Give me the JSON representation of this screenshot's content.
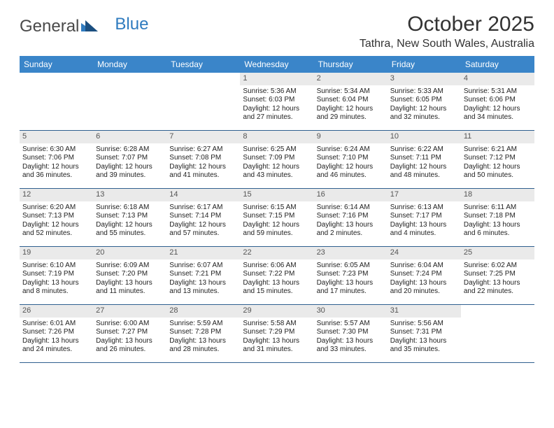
{
  "logo": {
    "text1": "General",
    "text2": "Blue"
  },
  "title": "October 2025",
  "subtitle": "Tathra, New South Wales, Australia",
  "colors": {
    "header_bg": "#3a85c9",
    "header_text": "#ffffff",
    "daynum_bg": "#eaeaea",
    "daynum_text": "#555555",
    "row_border": "#2f5f8f",
    "logo_gray": "#4a4a4a",
    "logo_blue": "#2f7bbf"
  },
  "day_headers": [
    "Sunday",
    "Monday",
    "Tuesday",
    "Wednesday",
    "Thursday",
    "Friday",
    "Saturday"
  ],
  "weeks": [
    [
      {
        "day": "",
        "empty": true
      },
      {
        "day": "",
        "empty": true
      },
      {
        "day": "",
        "empty": true
      },
      {
        "day": "1",
        "sunrise": "Sunrise: 5:36 AM",
        "sunset": "Sunset: 6:03 PM",
        "daylight": "Daylight: 12 hours and 27 minutes."
      },
      {
        "day": "2",
        "sunrise": "Sunrise: 5:34 AM",
        "sunset": "Sunset: 6:04 PM",
        "daylight": "Daylight: 12 hours and 29 minutes."
      },
      {
        "day": "3",
        "sunrise": "Sunrise: 5:33 AM",
        "sunset": "Sunset: 6:05 PM",
        "daylight": "Daylight: 12 hours and 32 minutes."
      },
      {
        "day": "4",
        "sunrise": "Sunrise: 5:31 AM",
        "sunset": "Sunset: 6:06 PM",
        "daylight": "Daylight: 12 hours and 34 minutes."
      }
    ],
    [
      {
        "day": "5",
        "sunrise": "Sunrise: 6:30 AM",
        "sunset": "Sunset: 7:06 PM",
        "daylight": "Daylight: 12 hours and 36 minutes."
      },
      {
        "day": "6",
        "sunrise": "Sunrise: 6:28 AM",
        "sunset": "Sunset: 7:07 PM",
        "daylight": "Daylight: 12 hours and 39 minutes."
      },
      {
        "day": "7",
        "sunrise": "Sunrise: 6:27 AM",
        "sunset": "Sunset: 7:08 PM",
        "daylight": "Daylight: 12 hours and 41 minutes."
      },
      {
        "day": "8",
        "sunrise": "Sunrise: 6:25 AM",
        "sunset": "Sunset: 7:09 PM",
        "daylight": "Daylight: 12 hours and 43 minutes."
      },
      {
        "day": "9",
        "sunrise": "Sunrise: 6:24 AM",
        "sunset": "Sunset: 7:10 PM",
        "daylight": "Daylight: 12 hours and 46 minutes."
      },
      {
        "day": "10",
        "sunrise": "Sunrise: 6:22 AM",
        "sunset": "Sunset: 7:11 PM",
        "daylight": "Daylight: 12 hours and 48 minutes."
      },
      {
        "day": "11",
        "sunrise": "Sunrise: 6:21 AM",
        "sunset": "Sunset: 7:12 PM",
        "daylight": "Daylight: 12 hours and 50 minutes."
      }
    ],
    [
      {
        "day": "12",
        "sunrise": "Sunrise: 6:20 AM",
        "sunset": "Sunset: 7:13 PM",
        "daylight": "Daylight: 12 hours and 52 minutes."
      },
      {
        "day": "13",
        "sunrise": "Sunrise: 6:18 AM",
        "sunset": "Sunset: 7:13 PM",
        "daylight": "Daylight: 12 hours and 55 minutes."
      },
      {
        "day": "14",
        "sunrise": "Sunrise: 6:17 AM",
        "sunset": "Sunset: 7:14 PM",
        "daylight": "Daylight: 12 hours and 57 minutes."
      },
      {
        "day": "15",
        "sunrise": "Sunrise: 6:15 AM",
        "sunset": "Sunset: 7:15 PM",
        "daylight": "Daylight: 12 hours and 59 minutes."
      },
      {
        "day": "16",
        "sunrise": "Sunrise: 6:14 AM",
        "sunset": "Sunset: 7:16 PM",
        "daylight": "Daylight: 13 hours and 2 minutes."
      },
      {
        "day": "17",
        "sunrise": "Sunrise: 6:13 AM",
        "sunset": "Sunset: 7:17 PM",
        "daylight": "Daylight: 13 hours and 4 minutes."
      },
      {
        "day": "18",
        "sunrise": "Sunrise: 6:11 AM",
        "sunset": "Sunset: 7:18 PM",
        "daylight": "Daylight: 13 hours and 6 minutes."
      }
    ],
    [
      {
        "day": "19",
        "sunrise": "Sunrise: 6:10 AM",
        "sunset": "Sunset: 7:19 PM",
        "daylight": "Daylight: 13 hours and 8 minutes."
      },
      {
        "day": "20",
        "sunrise": "Sunrise: 6:09 AM",
        "sunset": "Sunset: 7:20 PM",
        "daylight": "Daylight: 13 hours and 11 minutes."
      },
      {
        "day": "21",
        "sunrise": "Sunrise: 6:07 AM",
        "sunset": "Sunset: 7:21 PM",
        "daylight": "Daylight: 13 hours and 13 minutes."
      },
      {
        "day": "22",
        "sunrise": "Sunrise: 6:06 AM",
        "sunset": "Sunset: 7:22 PM",
        "daylight": "Daylight: 13 hours and 15 minutes."
      },
      {
        "day": "23",
        "sunrise": "Sunrise: 6:05 AM",
        "sunset": "Sunset: 7:23 PM",
        "daylight": "Daylight: 13 hours and 17 minutes."
      },
      {
        "day": "24",
        "sunrise": "Sunrise: 6:04 AM",
        "sunset": "Sunset: 7:24 PM",
        "daylight": "Daylight: 13 hours and 20 minutes."
      },
      {
        "day": "25",
        "sunrise": "Sunrise: 6:02 AM",
        "sunset": "Sunset: 7:25 PM",
        "daylight": "Daylight: 13 hours and 22 minutes."
      }
    ],
    [
      {
        "day": "26",
        "sunrise": "Sunrise: 6:01 AM",
        "sunset": "Sunset: 7:26 PM",
        "daylight": "Daylight: 13 hours and 24 minutes."
      },
      {
        "day": "27",
        "sunrise": "Sunrise: 6:00 AM",
        "sunset": "Sunset: 7:27 PM",
        "daylight": "Daylight: 13 hours and 26 minutes."
      },
      {
        "day": "28",
        "sunrise": "Sunrise: 5:59 AM",
        "sunset": "Sunset: 7:28 PM",
        "daylight": "Daylight: 13 hours and 28 minutes."
      },
      {
        "day": "29",
        "sunrise": "Sunrise: 5:58 AM",
        "sunset": "Sunset: 7:29 PM",
        "daylight": "Daylight: 13 hours and 31 minutes."
      },
      {
        "day": "30",
        "sunrise": "Sunrise: 5:57 AM",
        "sunset": "Sunset: 7:30 PM",
        "daylight": "Daylight: 13 hours and 33 minutes."
      },
      {
        "day": "31",
        "sunrise": "Sunrise: 5:56 AM",
        "sunset": "Sunset: 7:31 PM",
        "daylight": "Daylight: 13 hours and 35 minutes."
      },
      {
        "day": "",
        "empty": true
      }
    ]
  ]
}
